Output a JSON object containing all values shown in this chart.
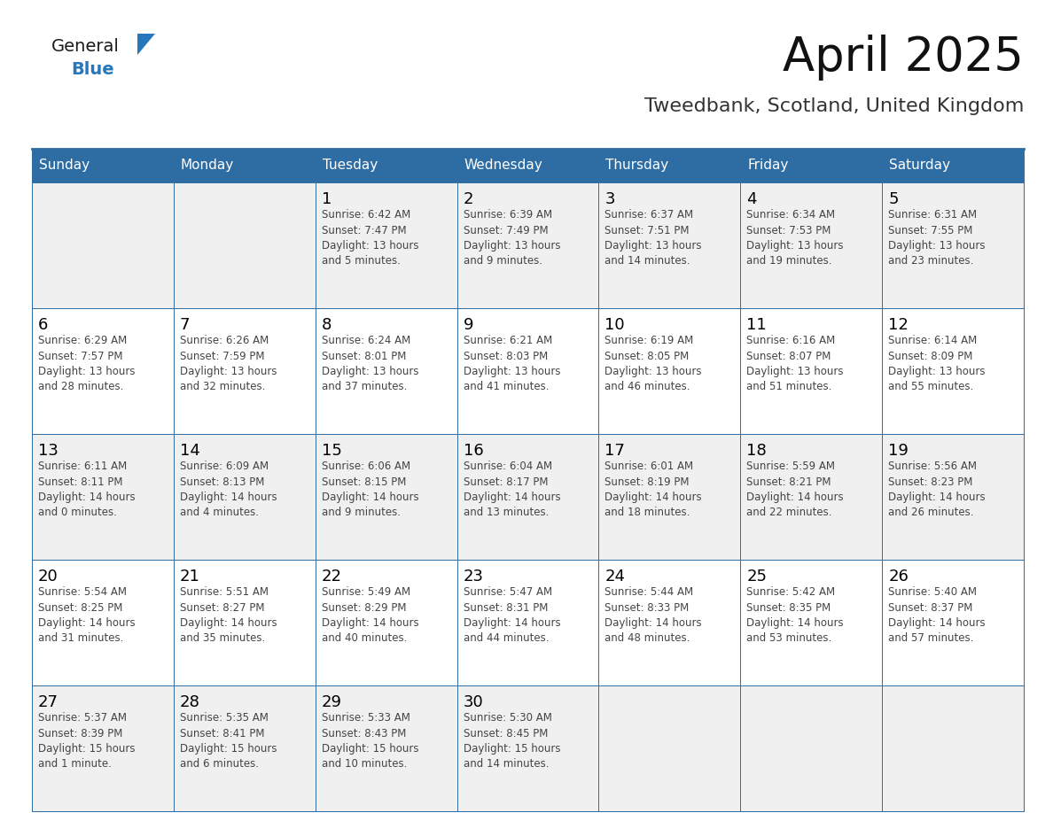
{
  "title": "April 2025",
  "subtitle": "Tweedbank, Scotland, United Kingdom",
  "header_bg": "#2E6DA4",
  "header_text_color": "#FFFFFF",
  "days_of_week": [
    "Sunday",
    "Monday",
    "Tuesday",
    "Wednesday",
    "Thursday",
    "Friday",
    "Saturday"
  ],
  "cell_bg_white": "#FFFFFF",
  "cell_bg_gray": "#F0F0F0",
  "cell_border_color": "#2E6DA4",
  "text_color": "#444444",
  "day_num_color": "#000000",
  "bg_color": "#FFFFFF",
  "logo_general_color": "#1A1A1A",
  "logo_blue_color": "#2777BC",
  "calendar_data": [
    [
      {
        "day": "",
        "info": ""
      },
      {
        "day": "",
        "info": ""
      },
      {
        "day": "1",
        "info": "Sunrise: 6:42 AM\nSunset: 7:47 PM\nDaylight: 13 hours\nand 5 minutes."
      },
      {
        "day": "2",
        "info": "Sunrise: 6:39 AM\nSunset: 7:49 PM\nDaylight: 13 hours\nand 9 minutes."
      },
      {
        "day": "3",
        "info": "Sunrise: 6:37 AM\nSunset: 7:51 PM\nDaylight: 13 hours\nand 14 minutes."
      },
      {
        "day": "4",
        "info": "Sunrise: 6:34 AM\nSunset: 7:53 PM\nDaylight: 13 hours\nand 19 minutes."
      },
      {
        "day": "5",
        "info": "Sunrise: 6:31 AM\nSunset: 7:55 PM\nDaylight: 13 hours\nand 23 minutes."
      }
    ],
    [
      {
        "day": "6",
        "info": "Sunrise: 6:29 AM\nSunset: 7:57 PM\nDaylight: 13 hours\nand 28 minutes."
      },
      {
        "day": "7",
        "info": "Sunrise: 6:26 AM\nSunset: 7:59 PM\nDaylight: 13 hours\nand 32 minutes."
      },
      {
        "day": "8",
        "info": "Sunrise: 6:24 AM\nSunset: 8:01 PM\nDaylight: 13 hours\nand 37 minutes."
      },
      {
        "day": "9",
        "info": "Sunrise: 6:21 AM\nSunset: 8:03 PM\nDaylight: 13 hours\nand 41 minutes."
      },
      {
        "day": "10",
        "info": "Sunrise: 6:19 AM\nSunset: 8:05 PM\nDaylight: 13 hours\nand 46 minutes."
      },
      {
        "day": "11",
        "info": "Sunrise: 6:16 AM\nSunset: 8:07 PM\nDaylight: 13 hours\nand 51 minutes."
      },
      {
        "day": "12",
        "info": "Sunrise: 6:14 AM\nSunset: 8:09 PM\nDaylight: 13 hours\nand 55 minutes."
      }
    ],
    [
      {
        "day": "13",
        "info": "Sunrise: 6:11 AM\nSunset: 8:11 PM\nDaylight: 14 hours\nand 0 minutes."
      },
      {
        "day": "14",
        "info": "Sunrise: 6:09 AM\nSunset: 8:13 PM\nDaylight: 14 hours\nand 4 minutes."
      },
      {
        "day": "15",
        "info": "Sunrise: 6:06 AM\nSunset: 8:15 PM\nDaylight: 14 hours\nand 9 minutes."
      },
      {
        "day": "16",
        "info": "Sunrise: 6:04 AM\nSunset: 8:17 PM\nDaylight: 14 hours\nand 13 minutes."
      },
      {
        "day": "17",
        "info": "Sunrise: 6:01 AM\nSunset: 8:19 PM\nDaylight: 14 hours\nand 18 minutes."
      },
      {
        "day": "18",
        "info": "Sunrise: 5:59 AM\nSunset: 8:21 PM\nDaylight: 14 hours\nand 22 minutes."
      },
      {
        "day": "19",
        "info": "Sunrise: 5:56 AM\nSunset: 8:23 PM\nDaylight: 14 hours\nand 26 minutes."
      }
    ],
    [
      {
        "day": "20",
        "info": "Sunrise: 5:54 AM\nSunset: 8:25 PM\nDaylight: 14 hours\nand 31 minutes."
      },
      {
        "day": "21",
        "info": "Sunrise: 5:51 AM\nSunset: 8:27 PM\nDaylight: 14 hours\nand 35 minutes."
      },
      {
        "day": "22",
        "info": "Sunrise: 5:49 AM\nSunset: 8:29 PM\nDaylight: 14 hours\nand 40 minutes."
      },
      {
        "day": "23",
        "info": "Sunrise: 5:47 AM\nSunset: 8:31 PM\nDaylight: 14 hours\nand 44 minutes."
      },
      {
        "day": "24",
        "info": "Sunrise: 5:44 AM\nSunset: 8:33 PM\nDaylight: 14 hours\nand 48 minutes."
      },
      {
        "day": "25",
        "info": "Sunrise: 5:42 AM\nSunset: 8:35 PM\nDaylight: 14 hours\nand 53 minutes."
      },
      {
        "day": "26",
        "info": "Sunrise: 5:40 AM\nSunset: 8:37 PM\nDaylight: 14 hours\nand 57 minutes."
      }
    ],
    [
      {
        "day": "27",
        "info": "Sunrise: 5:37 AM\nSunset: 8:39 PM\nDaylight: 15 hours\nand 1 minute."
      },
      {
        "day": "28",
        "info": "Sunrise: 5:35 AM\nSunset: 8:41 PM\nDaylight: 15 hours\nand 6 minutes."
      },
      {
        "day": "29",
        "info": "Sunrise: 5:33 AM\nSunset: 8:43 PM\nDaylight: 15 hours\nand 10 minutes."
      },
      {
        "day": "30",
        "info": "Sunrise: 5:30 AM\nSunset: 8:45 PM\nDaylight: 15 hours\nand 14 minutes."
      },
      {
        "day": "",
        "info": ""
      },
      {
        "day": "",
        "info": ""
      },
      {
        "day": "",
        "info": ""
      }
    ]
  ]
}
